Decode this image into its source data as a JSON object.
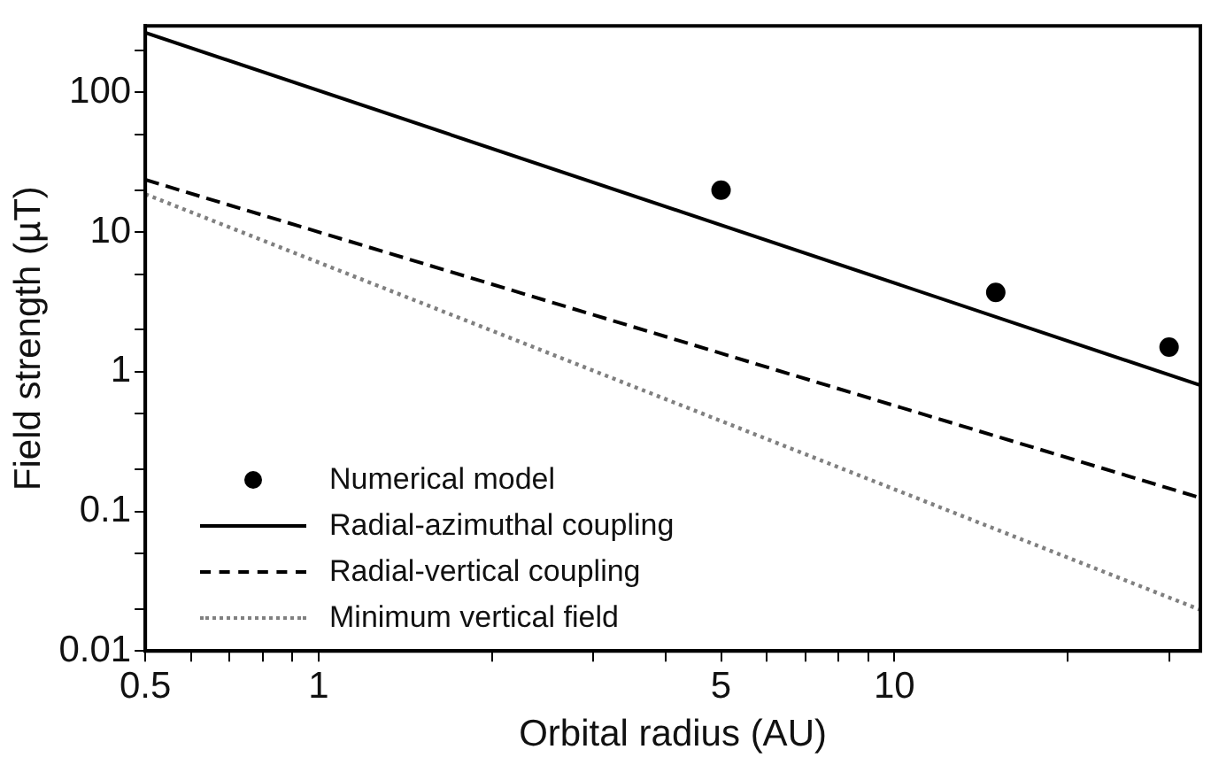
{
  "chart_data": {
    "type": "line",
    "xlabel": "Orbital radius (AU)",
    "ylabel": "Field strength (µT)",
    "log": "xy",
    "xlim": [
      0.5,
      34
    ],
    "ylim": [
      0.01,
      300
    ],
    "xticks": [
      0.5,
      {
        "value": 0.6,
        "label": null
      },
      {
        "value": 0.7,
        "label": null
      },
      {
        "value": 0.8,
        "label": null
      },
      {
        "value": 0.9,
        "label": null
      },
      1,
      {
        "value": 2,
        "label": null
      },
      {
        "value": 3,
        "label": null
      },
      {
        "value": 4,
        "label": null
      },
      5,
      {
        "value": 6,
        "label": null
      },
      {
        "value": 7,
        "label": null
      },
      {
        "value": 8,
        "label": null
      },
      {
        "value": 9,
        "label": null
      },
      10,
      {
        "value": 20,
        "label": null
      },
      {
        "value": 30,
        "label": null
      }
    ],
    "yticks": [
      0.01,
      {
        "value": 0.02,
        "label": null
      },
      {
        "value": 0.05,
        "label": null
      },
      0.1,
      {
        "value": 0.2,
        "label": null
      },
      {
        "value": 0.5,
        "label": null
      },
      1,
      {
        "value": 2,
        "label": null
      },
      {
        "value": 5,
        "label": null
      },
      10,
      {
        "value": 20,
        "label": null
      },
      {
        "value": 50,
        "label": null
      },
      100,
      {
        "value": 200,
        "label": null
      }
    ],
    "grid": false,
    "legend": "bottom left",
    "series": [
      {
        "name": "Numerical model",
        "type": "scatter",
        "marker": "circle",
        "color": "#000000",
        "x": [
          5,
          15,
          30
        ],
        "values": [
          20,
          3.7,
          1.5
        ]
      },
      {
        "name": "Radial-azimuthal coupling",
        "type": "line",
        "line_style": "solid",
        "marker": "none",
        "color": "#000000",
        "x": [
          0.5,
          34
        ],
        "values": [
          268,
          0.8
        ]
      },
      {
        "name": "Radial-vertical coupling",
        "type": "line",
        "line_style": "dashed",
        "marker": "none",
        "color": "#000000",
        "x": [
          0.5,
          34
        ],
        "values": [
          23.7,
          0.125
        ]
      },
      {
        "name": "Minimum vertical field",
        "type": "line",
        "line_style": "dotted",
        "marker": "none",
        "color": "#808080",
        "x": [
          0.5,
          34
        ],
        "values": [
          18.7,
          0.0197
        ]
      }
    ]
  }
}
